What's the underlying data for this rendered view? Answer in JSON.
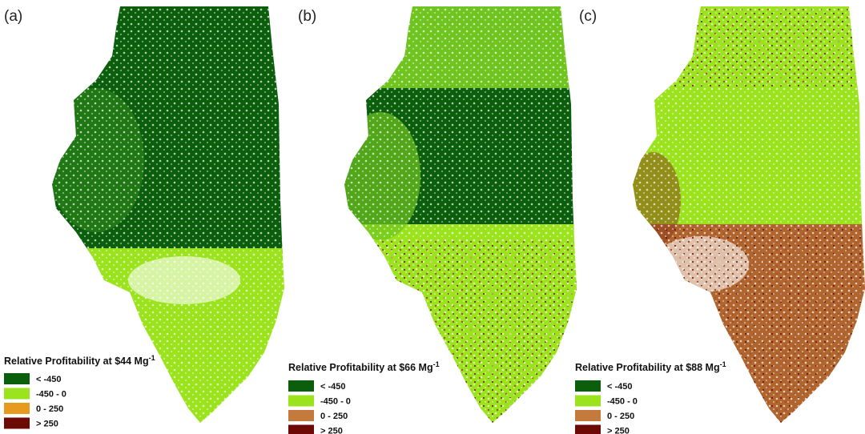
{
  "panels": [
    {
      "label": "(a)",
      "legend": {
        "title": "Relative Profitability at $44 Mg",
        "title_sup": "-1",
        "items": [
          {
            "label": "< -450",
            "color": "#0b5e0b"
          },
          {
            "label": "-450 - 0",
            "color": "#9be31c"
          },
          {
            "label": "0 - 250",
            "color": "#e89a1e"
          },
          {
            "label": "> 250",
            "color": "#6e0a05"
          }
        ]
      }
    },
    {
      "label": "(b)",
      "legend": {
        "title": "Relative Profitability at $66 Mg",
        "title_sup": "-1",
        "items": [
          {
            "label": "< -450",
            "color": "#0b5e0b"
          },
          {
            "label": "-450 - 0",
            "color": "#9be31c"
          },
          {
            "label": "0 - 250",
            "color": "#c47a3c"
          },
          {
            "label": "> 250",
            "color": "#6e0a05"
          }
        ]
      }
    },
    {
      "label": "(c)",
      "legend": {
        "title": "Relative Profitability at $88 Mg",
        "title_sup": "-1",
        "items": [
          {
            "label": "< -450",
            "color": "#0b5e0b"
          },
          {
            "label": "-450 - 0",
            "color": "#9be31c"
          },
          {
            "label": "0 - 250",
            "color": "#c47a3c"
          },
          {
            "label": "> 250",
            "color": "#6e0a05"
          }
        ]
      }
    }
  ]
}
